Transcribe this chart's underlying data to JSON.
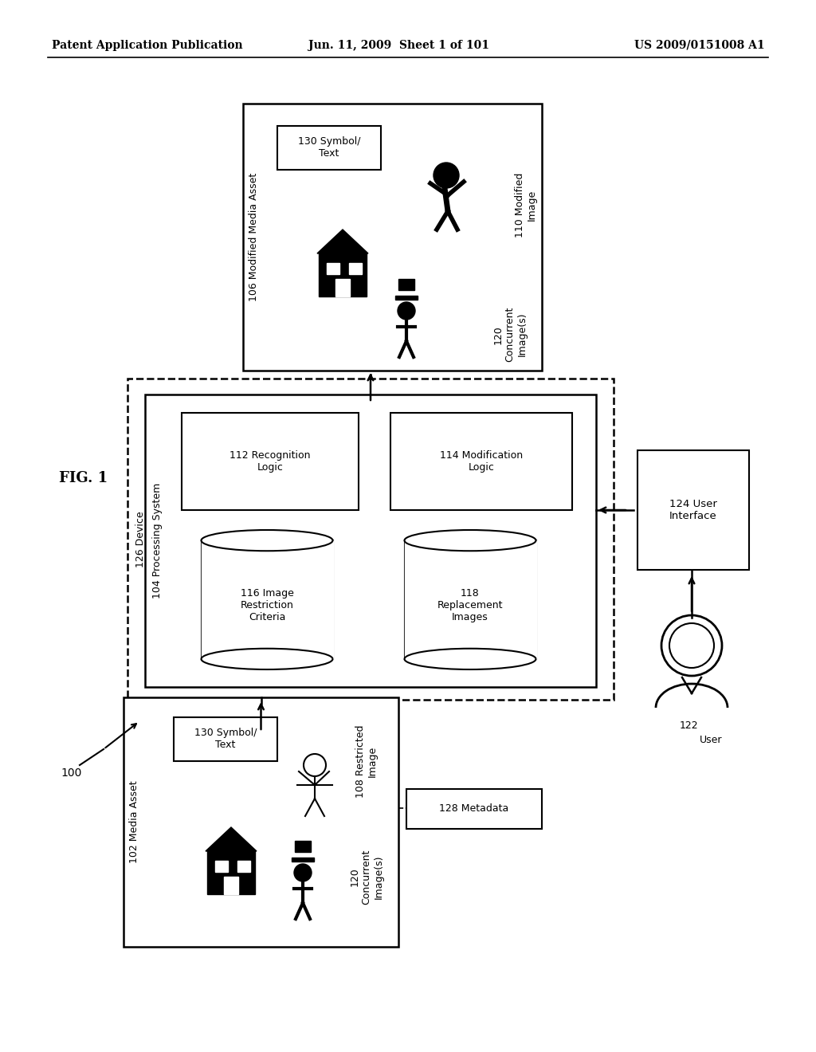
{
  "bg_color": "#ffffff",
  "header_left": "Patent Application Publication",
  "header_mid": "Jun. 11, 2009  Sheet 1 of 101",
  "header_right": "US 2009/0151008 A1",
  "fig_label": "FIG. 1",
  "ref_100": "100",
  "ref_102": "102 Media Asset",
  "ref_104": "104 Processing System",
  "ref_106": "106 Modified Media Asset",
  "ref_108": "108 Restricted\nImage",
  "ref_110": "110 Modified\nImage",
  "ref_112": "112 Recognition\nLogic",
  "ref_114": "114 Modification\nLogic",
  "ref_116": "116 Image\nRestriction\nCriteria",
  "ref_118": "118\nReplacement\nImages",
  "ref_120": "120\nConcurrent\nImage(s)",
  "ref_122": "122",
  "ref_124": "124 User\nInterface",
  "ref_126": "126 Device",
  "ref_128": "128 Metadata",
  "ref_130": "130 Symbol/\nText"
}
